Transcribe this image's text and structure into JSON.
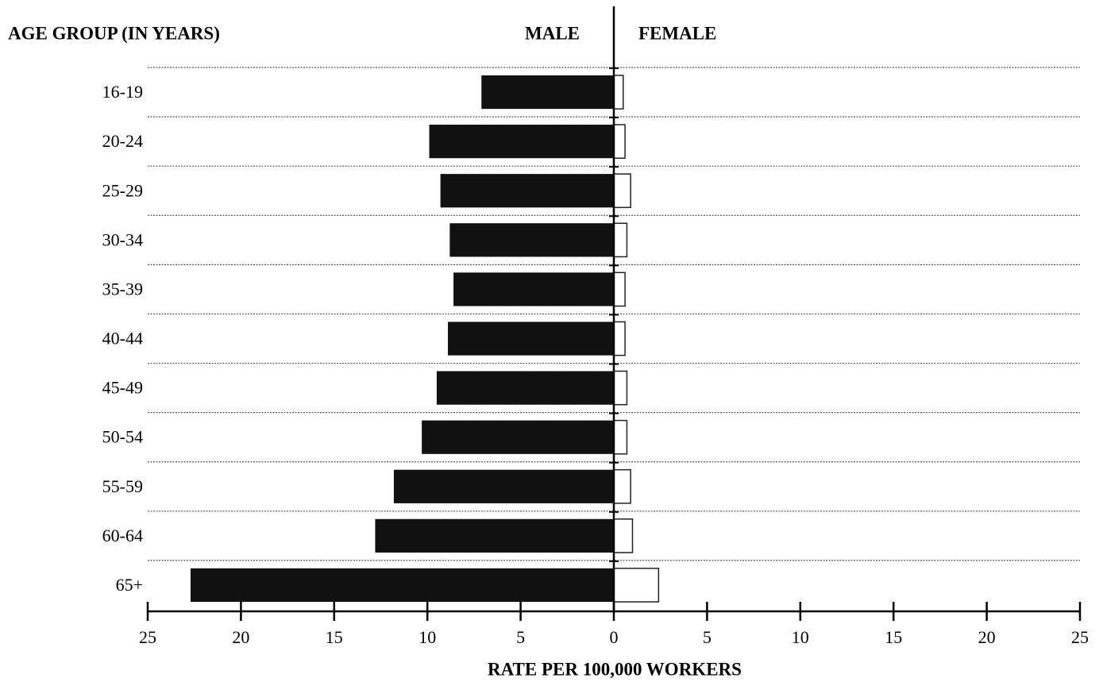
{
  "chart_data": {
    "type": "bar",
    "orientation": "horizontal",
    "y_label": "AGE GROUP (IN YEARS)",
    "x_label": "RATE PER 100,000 WORKERS",
    "categories": [
      "16-19",
      "20-24",
      "25-29",
      "30-34",
      "35-39",
      "40-44",
      "45-49",
      "50-54",
      "55-59",
      "60-64",
      "65+"
    ],
    "series": [
      {
        "name": "MALE",
        "color": "#111111",
        "values": [
          -7.1,
          -9.9,
          -9.3,
          -8.8,
          -8.6,
          -8.9,
          -9.5,
          -10.3,
          -11.8,
          -12.8,
          -22.7
        ]
      },
      {
        "name": "FEMALE",
        "color": "#ffffff",
        "values": [
          0.5,
          0.6,
          0.9,
          0.7,
          0.6,
          0.6,
          0.7,
          0.7,
          0.9,
          1.0,
          2.4
        ]
      }
    ],
    "xlim": [
      -25,
      25
    ],
    "xticks": [
      {
        "value": -25,
        "label": "25"
      },
      {
        "value": -20,
        "label": "20"
      },
      {
        "value": -15,
        "label": "15"
      },
      {
        "value": -10,
        "label": "10"
      },
      {
        "value": -5,
        "label": "5"
      },
      0,
      5,
      10,
      15,
      20,
      25
    ],
    "grid": true
  }
}
